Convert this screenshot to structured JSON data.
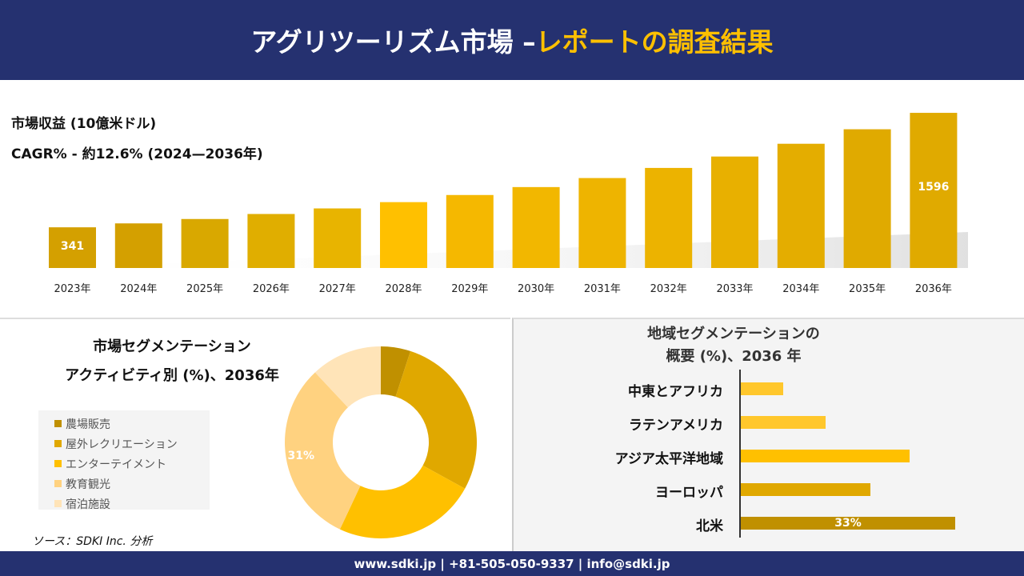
{
  "header": {
    "title_white": "アグリツーリズム市場 –",
    "title_yellow": "レポートの調査結果"
  },
  "footer": {
    "text": "www.sdki.jp | +81-505-050-9337 | info@sdki.jp"
  },
  "source": "ソース：SDKI Inc. 分析",
  "chart_data": [
    {
      "type": "bar",
      "title": "市場収益 (10億米ドル)",
      "subtitle": "CAGR% - 約12.6% (2024—2036年)",
      "categories": [
        "2023年",
        "2024年",
        "2025年",
        "2026年",
        "2027年",
        "2028年",
        "2029年",
        "2030年",
        "2031年",
        "2032年",
        "2033年",
        "2034年",
        "2035年",
        "2036年"
      ],
      "values": [
        341,
        384,
        432,
        487,
        548,
        617,
        695,
        782,
        881,
        992,
        1117,
        1257,
        1416,
        1596
      ],
      "data_labels": {
        "0": "341",
        "13": "1596"
      },
      "colors": [
        "#d4a000",
        "#d4a000",
        "#d9a800",
        "#e0ae00",
        "#e8b400",
        "#ffc000",
        "#f5b800",
        "#f2b700",
        "#eeb400",
        "#ecb300",
        "#e8b000",
        "#e4ad00",
        "#e0aa00",
        "#e0aa00"
      ]
    },
    {
      "type": "pie",
      "title": [
        "市場セグメンテーション",
        "アクティビティ別 (%)、2036年"
      ],
      "categories": [
        "農場販売",
        "屋外レクリエーション",
        "エンターテイメント",
        "教育観光",
        "宿泊施設"
      ],
      "values": [
        5,
        28,
        24,
        31,
        12
      ],
      "data_labels": {
        "3": "31%"
      },
      "colors": [
        "#c09000",
        "#e0a800",
        "#ffc000",
        "#ffd280",
        "#ffe4b8"
      ]
    },
    {
      "type": "bar",
      "orientation": "horizontal",
      "title": [
        "地域セグメンテーションの",
        "概要 (%)、2036 年"
      ],
      "categories": [
        "中東とアフリカ",
        "ラテンアメリカ",
        "アジア太平洋地域",
        "ヨーロッパ",
        "北米"
      ],
      "values": [
        6.5,
        13,
        26,
        20,
        33
      ],
      "data_labels": {
        "4": "33%"
      },
      "colors": [
        "#ffc72c",
        "#ffc72c",
        "#ffc000",
        "#e0a800",
        "#c09000"
      ]
    }
  ]
}
